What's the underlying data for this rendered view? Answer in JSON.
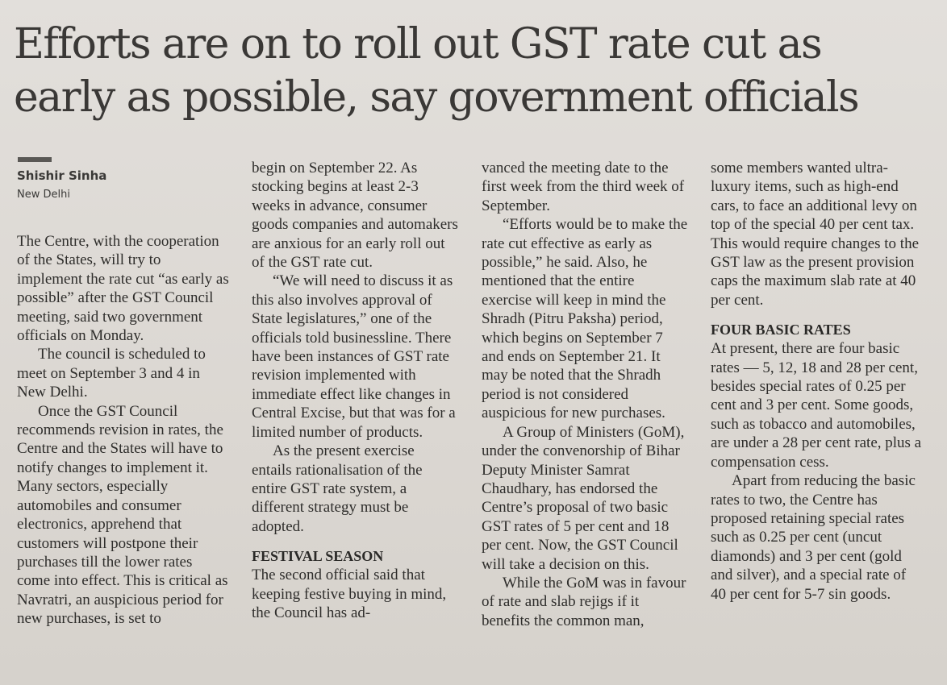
{
  "article": {
    "headline": "Efforts are on to roll out GST rate cut as early as possible, say government officials",
    "byline": {
      "author": "Shishir Sinha",
      "dateline": "New Delhi"
    },
    "columns": [
      {
        "paragraphs": [
          "The Centre, with the cooperation of the States, will try to implement the rate cut “as early as possible” after the GST Council meeting, said two government officials on Monday.",
          "The council is scheduled to meet on September 3 and 4 in New Delhi.",
          "Once the GST Council recommends revision in rates, the Centre and the States will have to notify changes to implement it. Many sectors, especially automobiles and consumer electronics, apprehend that customers will postpone their purchases till the lower rates come into effect. This is critical as Navratri, an auspicious period for new purchases, is set to"
        ]
      },
      {
        "paragraphs": [
          "begin on September 22. As stocking begins at least 2-3 weeks in advance, consumer goods companies and automakers are anxious for an early roll out of the GST rate cut.",
          "“We will need to discuss it as this also involves approval of State legislatures,” one of the officials told businessline. There have been instances of GST rate revision implemented with immediate effect like changes in Central Excise, but that was for a limited number of products.",
          "As the present exercise entails rationalisation of the entire GST rate system, a different strategy must be adopted."
        ],
        "subhead": "FESTIVAL SEASON",
        "after_subhead": [
          "The second official said that keeping festive buying in mind, the Council has ad-"
        ]
      },
      {
        "paragraphs": [
          "vanced the meeting date to the first week from the third week of September.",
          "“Efforts would be to make the rate cut effective as early as possible,” he said. Also, he mentioned that the entire exercise will keep in mind the Shradh (Pitru Paksha) period, which begins on September 7 and ends on September 21. It may be noted that the Shradh period is not considered auspicious for new purchases.",
          "A Group of Ministers (GoM), under the convenorship of Bihar Deputy Minister Samrat Chaudhary, has endorsed the Centre’s proposal of two basic GST rates of 5 per cent and 18 per cent. Now, the GST Council will take a decision on this.",
          "While the GoM was in favour of rate and slab rejigs if it benefits the common man,"
        ]
      },
      {
        "paragraphs": [
          "some members wanted ultra-luxury items, such as high-end cars, to face an additional levy on top of the special 40 per cent tax. This would require changes to the GST law as the present provision caps the maximum slab rate at 40 per cent."
        ],
        "subhead": "FOUR BASIC RATES",
        "after_subhead": [
          "At present, there are four basic rates — 5, 12, 18 and 28 per cent, besides special rates of 0.25 per cent and 3 per cent. Some goods, such as tobacco and automobiles, are under a 28 per cent rate, plus a compensation cess.",
          "Apart from reducing the basic rates to two, the Centre has proposed retaining special rates such as 0.25 per cent (uncut diamonds) and 3 per cent (gold and silver), and a special rate of 40 per cent for 5-7 sin goods."
        ]
      }
    ]
  }
}
